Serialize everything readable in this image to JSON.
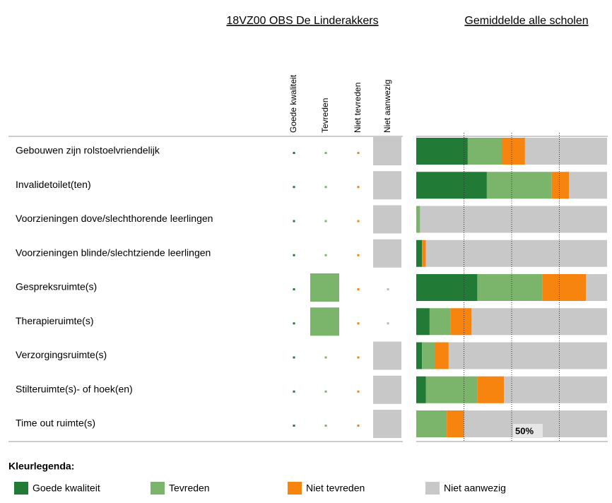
{
  "school": {
    "title": "18VZ00 OBS De Linderakkers",
    "answers": [
      3,
      3,
      3,
      3,
      1,
      1,
      3,
      3,
      3
    ]
  },
  "chart_data": {
    "type": "stacked_bar",
    "orientation": "horizontal",
    "title": "Gemiddelde alle scholen",
    "categories": [
      "Gebouwen zijn rolstoelvriendelijk",
      "Invalidetoilet(ten)",
      "Voorzieningen dove/slechthorende leerlingen",
      "Voorzieningen blinde/slechtziende leerlingen",
      "Gespreksruimte(s)",
      "Therapieruimte(s)",
      "Verzorgingsruimte(s)",
      "Stilteruimte(s)- of hoek(en)",
      "Time out ruimte(s)"
    ],
    "series": [
      {
        "name": "Goede kwaliteit",
        "color": "#217a35",
        "values": [
          27,
          37,
          0,
          3,
          32,
          7,
          3,
          5,
          0
        ]
      },
      {
        "name": "Tevreden",
        "color": "#7bb56b",
        "values": [
          18,
          34,
          2,
          0,
          34,
          11,
          7,
          27,
          16
        ]
      },
      {
        "name": "Niet tevreden",
        "color": "#f7840f",
        "values": [
          12,
          9,
          0,
          2,
          23,
          11,
          7,
          14,
          9
        ]
      },
      {
        "name": "Niet aanwezig",
        "color": "#c8c8c8",
        "values": [
          43,
          20,
          98,
          95,
          11,
          71,
          83,
          54,
          75
        ]
      }
    ],
    "xlim": [
      0,
      100
    ],
    "gridlines": [
      25,
      50,
      75
    ],
    "xticks": [
      {
        "value": 50,
        "label": "50%"
      }
    ],
    "legend_title": "Kleurlegenda:"
  }
}
